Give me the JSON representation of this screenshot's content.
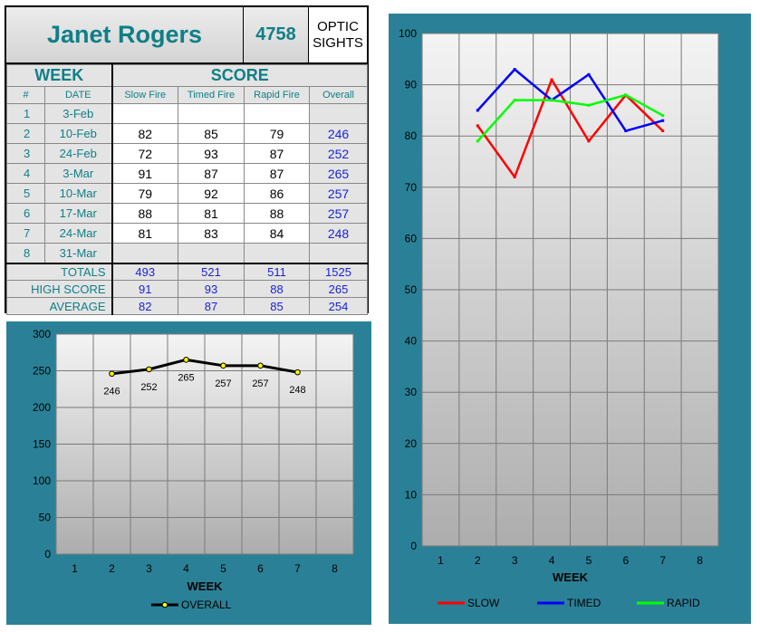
{
  "header": {
    "name": "Janet Rogers",
    "number": "4758",
    "category_line1": "OPTIC",
    "category_line2": "SIGHTS"
  },
  "table": {
    "group_headers": {
      "week": "WEEK",
      "score": "SCORE"
    },
    "columns": [
      "#",
      "DATE",
      "Slow Fire",
      "Timed Fire",
      "Rapid Fire",
      "Overall"
    ],
    "rows": [
      {
        "num": "1",
        "date": "3-Feb",
        "slow": "",
        "timed": "",
        "rapid": "",
        "overall": ""
      },
      {
        "num": "2",
        "date": "10-Feb",
        "slow": "82",
        "timed": "85",
        "rapid": "79",
        "overall": "246"
      },
      {
        "num": "3",
        "date": "24-Feb",
        "slow": "72",
        "timed": "93",
        "rapid": "87",
        "overall": "252"
      },
      {
        "num": "4",
        "date": "3-Mar",
        "slow": "91",
        "timed": "87",
        "rapid": "87",
        "overall": "265"
      },
      {
        "num": "5",
        "date": "10-Mar",
        "slow": "79",
        "timed": "92",
        "rapid": "86",
        "overall": "257"
      },
      {
        "num": "6",
        "date": "17-Mar",
        "slow": "88",
        "timed": "81",
        "rapid": "88",
        "overall": "257"
      },
      {
        "num": "7",
        "date": "24-Mar",
        "slow": "81",
        "timed": "83",
        "rapid": "84",
        "overall": "248"
      },
      {
        "num": "8",
        "date": "31-Mar",
        "slow": "",
        "timed": "",
        "rapid": "",
        "overall": ""
      }
    ],
    "totals": {
      "label": "TOTALS",
      "slow": "493",
      "timed": "521",
      "rapid": "511",
      "overall": "1525"
    },
    "high": {
      "label": "HIGH SCORE",
      "slow": "91",
      "timed": "93",
      "rapid": "88",
      "overall": "265"
    },
    "average": {
      "label": "AVERAGE",
      "slow": "82",
      "timed": "87",
      "rapid": "85",
      "overall": "254"
    }
  },
  "colors": {
    "teal_text": "#0f7f86",
    "panel_bg": "#2a8197",
    "value_blue": "#1a23d6",
    "slow": "#ff0000",
    "timed": "#0000ff",
    "rapid": "#00ff00",
    "overall": "#000000"
  },
  "chart_data": [
    {
      "type": "line",
      "xlabel": "WEEK",
      "ylabel": "",
      "categories": [
        "1",
        "2",
        "3",
        "4",
        "5",
        "6",
        "7",
        "8"
      ],
      "x": [
        2,
        3,
        4,
        5,
        6,
        7
      ],
      "ylim": [
        0,
        300
      ],
      "yticks": [
        0,
        50,
        100,
        150,
        200,
        250,
        300
      ],
      "series": [
        {
          "name": "OVERALL",
          "color": "#000000",
          "values": [
            246,
            252,
            265,
            257,
            257,
            248
          ]
        }
      ],
      "data_labels": [
        "246",
        "252",
        "265",
        "257",
        "257",
        "248"
      ],
      "legend": "bottom",
      "grid": true
    },
    {
      "type": "line",
      "xlabel": "WEEK",
      "ylabel": "",
      "categories": [
        "1",
        "2",
        "3",
        "4",
        "5",
        "6",
        "7",
        "8"
      ],
      "x": [
        2,
        3,
        4,
        5,
        6,
        7
      ],
      "ylim": [
        0,
        100
      ],
      "yticks": [
        0,
        10,
        20,
        30,
        40,
        50,
        60,
        70,
        80,
        90,
        100
      ],
      "series": [
        {
          "name": "SLOW",
          "color": "#ff0000",
          "values": [
            82,
            72,
            91,
            79,
            88,
            81
          ]
        },
        {
          "name": "TIMED",
          "color": "#0000ff",
          "values": [
            85,
            93,
            87,
            92,
            81,
            83
          ]
        },
        {
          "name": "RAPID",
          "color": "#00ff00",
          "values": [
            79,
            87,
            87,
            86,
            88,
            84
          ]
        }
      ],
      "legend": "bottom",
      "grid": true
    }
  ]
}
